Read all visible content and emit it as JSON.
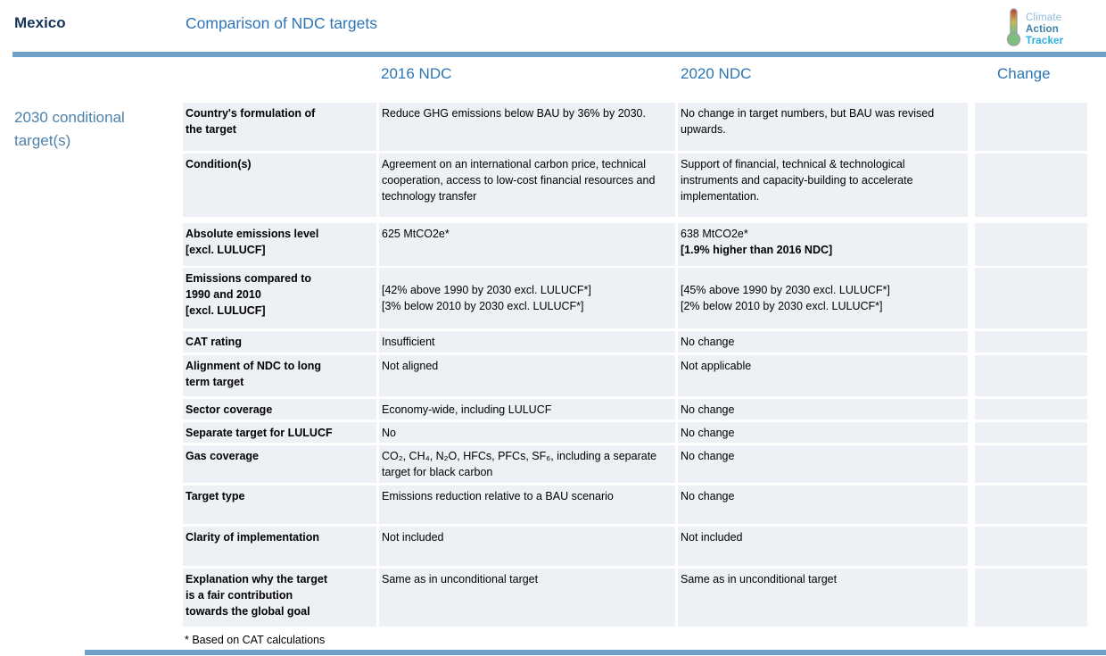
{
  "header": {
    "country": "Mexico",
    "title": "Comparison of NDC targets"
  },
  "logo": {
    "line1": "Climate",
    "line2": "Action",
    "line3": "Tracker",
    "icon": "thermometer-icon"
  },
  "columns": {
    "col2016": "2016 NDC",
    "col2020": "2020 NDC",
    "change": "Change"
  },
  "section_label": "2030 conditional target(s)",
  "footnote": "* Based on CAT calculations",
  "colors": {
    "title_dark_blue": "#17365D",
    "accent_blue": "#2E75B6",
    "rule_blue": "#6FA0C8",
    "section_label_blue": "#4E81AB",
    "row_shading": "#EDF0F5",
    "logo_cyan": "#2BACE2"
  },
  "rows": [
    {
      "h": 54,
      "gap": 3,
      "label": [
        "Country's formulation of",
        "the target"
      ],
      "c2016": [
        {
          "t": "Reduce GHG emissions below BAU by 36% by 2030."
        }
      ],
      "c2020": [
        {
          "t": "No change in target numbers, but BAU was revised upwards."
        }
      ],
      "change": []
    },
    {
      "h": 71,
      "gap": 7,
      "label": [
        "Condition(s)"
      ],
      "c2016": [
        {
          "t": "Agreement on an international carbon price, technical cooperation, access to low-cost financial resources and technology transfer"
        }
      ],
      "c2020": [
        {
          "t": "Support of financial, technical & technological instruments and capacity-building to accelerate implementation."
        }
      ],
      "change": []
    },
    {
      "h": 48,
      "gap": 2,
      "label": [
        "Absolute emissions level",
        "[excl. LULUCF]"
      ],
      "c2016": [
        {
          "t": "625 MtCO2e*"
        }
      ],
      "c2020": [
        {
          "t": "638 MtCO2e*"
        },
        {
          "t": "[1.9% higher than 2016 NDC]",
          "b": true
        }
      ],
      "change": []
    },
    {
      "h": 68,
      "gap": 3,
      "vcenter": true,
      "label": [
        "Emissions compared to",
        "1990 and 2010",
        "[excl. LULUCF]"
      ],
      "c2016": [
        {
          "t": "[42% above 1990 by 2030 excl. LULUCF*]"
        },
        {
          "t": "[3% below 2010 by 2030 excl. LULUCF*]"
        }
      ],
      "c2020": [
        {
          "t": "[45% above 1990 by 2030 excl. LULUCF*]"
        },
        {
          "t": "[2% below 2010 by 2030 excl. LULUCF*]"
        }
      ],
      "change": []
    },
    {
      "h": 24,
      "gap": 3,
      "label": [
        "CAT rating"
      ],
      "c2016": [
        {
          "t": "Insufficient"
        }
      ],
      "c2020": [
        {
          "t": "No change"
        }
      ],
      "change": []
    },
    {
      "h": 46,
      "gap": 3,
      "label": [
        "Alignment of NDC to long",
        "term target"
      ],
      "c2016": [
        {
          "t": "Not aligned"
        }
      ],
      "c2020": [
        {
          "t": "Not applicable"
        }
      ],
      "change": []
    },
    {
      "h": 23,
      "gap": 3,
      "label": [
        "Sector coverage"
      ],
      "c2016": [
        {
          "t": "Economy-wide, including LULUCF"
        }
      ],
      "c2020": [
        {
          "t": "No change"
        }
      ],
      "change": []
    },
    {
      "h": 23,
      "gap": 3,
      "label": [
        "Separate target for LULUCF"
      ],
      "c2016": [
        {
          "t": "No"
        }
      ],
      "c2020": [
        {
          "t": "No change"
        }
      ],
      "change": []
    },
    {
      "h": 42,
      "gap": 3,
      "label": [
        "Gas coverage"
      ],
      "c2016": [
        {
          "t": "CO₂, CH₄, N₂O, HFCs, PFCs, SF₆, including a separate target for black carbon"
        }
      ],
      "c2020": [
        {
          "t": "No change"
        }
      ],
      "change": []
    },
    {
      "h": 43,
      "gap": 3,
      "label": [
        "Target type"
      ],
      "c2016": [
        {
          "t": "Emissions reduction relative to a BAU scenario"
        }
      ],
      "c2020": [
        {
          "t": "No change"
        }
      ],
      "change": []
    },
    {
      "h": 44,
      "gap": 3,
      "label": [
        "Clarity of implementation"
      ],
      "c2016": [
        {
          "t": "Not included"
        }
      ],
      "c2020": [
        {
          "t": "Not included"
        }
      ],
      "change": []
    },
    {
      "h": 65,
      "gap": 0,
      "label": [
        "Explanation why the target",
        "is a fair contribution",
        "towards the global goal"
      ],
      "c2016": [
        {
          "t": "Same as in unconditional target"
        }
      ],
      "c2020": [
        {
          "t": "Same as in unconditional target"
        }
      ],
      "change": []
    }
  ]
}
